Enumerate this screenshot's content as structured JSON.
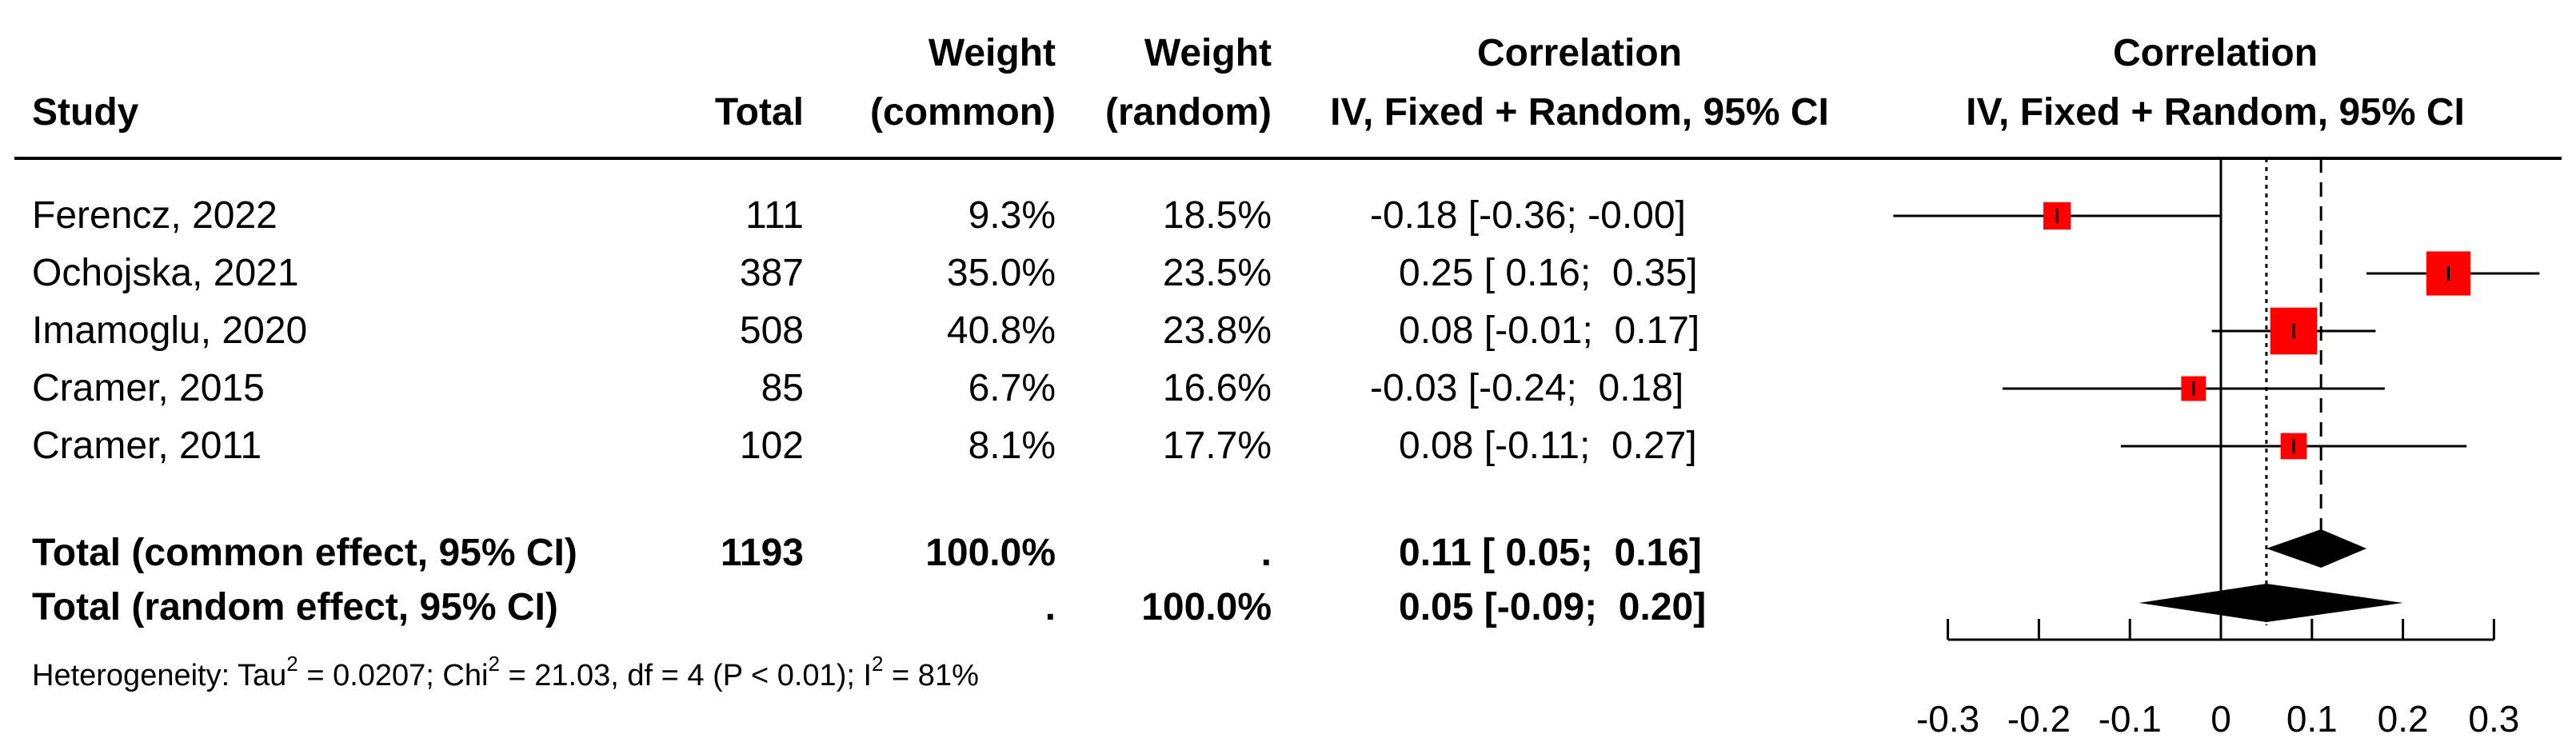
{
  "chart_data": {
    "type": "forest",
    "headers": {
      "study": "Study",
      "total": "Total",
      "weight_common": [
        "Weight",
        "(common)"
      ],
      "weight_random": [
        "Weight",
        "(random)"
      ],
      "ci": [
        "Correlation",
        "IV, Fixed + Random, 95% CI"
      ],
      "plot": [
        "Correlation",
        "IV, Fixed + Random, 95% CI"
      ]
    },
    "studies": [
      {
        "study": "Ferencz, 2022",
        "total": "111",
        "weight_common": "9.3%",
        "weight_random": "18.5%",
        "estimate": -0.18,
        "lower": -0.36,
        "upper": -0.0,
        "ci_text": "-0.18 [-0.36; -0.00]"
      },
      {
        "study": "Ochojska, 2021",
        "total": "387",
        "weight_common": "35.0%",
        "weight_random": "23.5%",
        "estimate": 0.25,
        "lower": 0.16,
        "upper": 0.35,
        "ci_text": "0.25 [ 0.16;  0.35]"
      },
      {
        "study": "Imamoglu, 2020",
        "total": "508",
        "weight_common": "40.8%",
        "weight_random": "23.8%",
        "estimate": 0.08,
        "lower": -0.01,
        "upper": 0.17,
        "ci_text": "0.08 [-0.01;  0.17]"
      },
      {
        "study": "Cramer, 2015",
        "total": "85",
        "weight_common": "6.7%",
        "weight_random": "16.6%",
        "estimate": -0.03,
        "lower": -0.24,
        "upper": 0.18,
        "ci_text": "-0.03 [-0.24;  0.18]"
      },
      {
        "study": "Cramer, 2011",
        "total": "102",
        "weight_common": "8.1%",
        "weight_random": "17.7%",
        "estimate": 0.08,
        "lower": -0.11,
        "upper": 0.27,
        "ci_text": "0.08 [-0.11;  0.27]"
      }
    ],
    "summary": [
      {
        "label": "Total (common effect, 95% CI)",
        "total": "1193",
        "weight_common": "100.0%",
        "weight_random": ".",
        "estimate": 0.11,
        "lower": 0.05,
        "upper": 0.16,
        "ci_text": "0.11 [ 0.05;  0.16]"
      },
      {
        "label": "Total (random effect, 95% CI)",
        "total": "",
        "weight_common": ".",
        "weight_random": "100.0%",
        "estimate": 0.05,
        "lower": -0.09,
        "upper": 0.2,
        "ci_text": "0.05 [-0.09;  0.20]"
      }
    ],
    "heterogeneity": {
      "prefix": "Heterogeneity: Tau",
      "tau2": " = 0.0207; Chi",
      "chi2": " = 21.03, df = 4 (P < 0.01); I",
      "i2": " = 81%",
      "sup": "2"
    },
    "x_axis": {
      "range": [
        -0.3,
        0.3
      ],
      "ticks": [
        -0.3,
        -0.2,
        -0.1,
        0,
        0.1,
        0.2,
        0.3
      ],
      "tick_labels": [
        "-0.3",
        "-0.2",
        "-0.1",
        "0",
        "0.1",
        "0.2",
        "0.3"
      ]
    },
    "plot_x_range": [
      -0.39,
      0.39
    ],
    "reference_line": 0,
    "common_effect_line": 0.11,
    "random_effect_line": 0.05,
    "colors": {
      "square": "#ff0000",
      "diamond": "#000000",
      "line": "#000000"
    }
  }
}
